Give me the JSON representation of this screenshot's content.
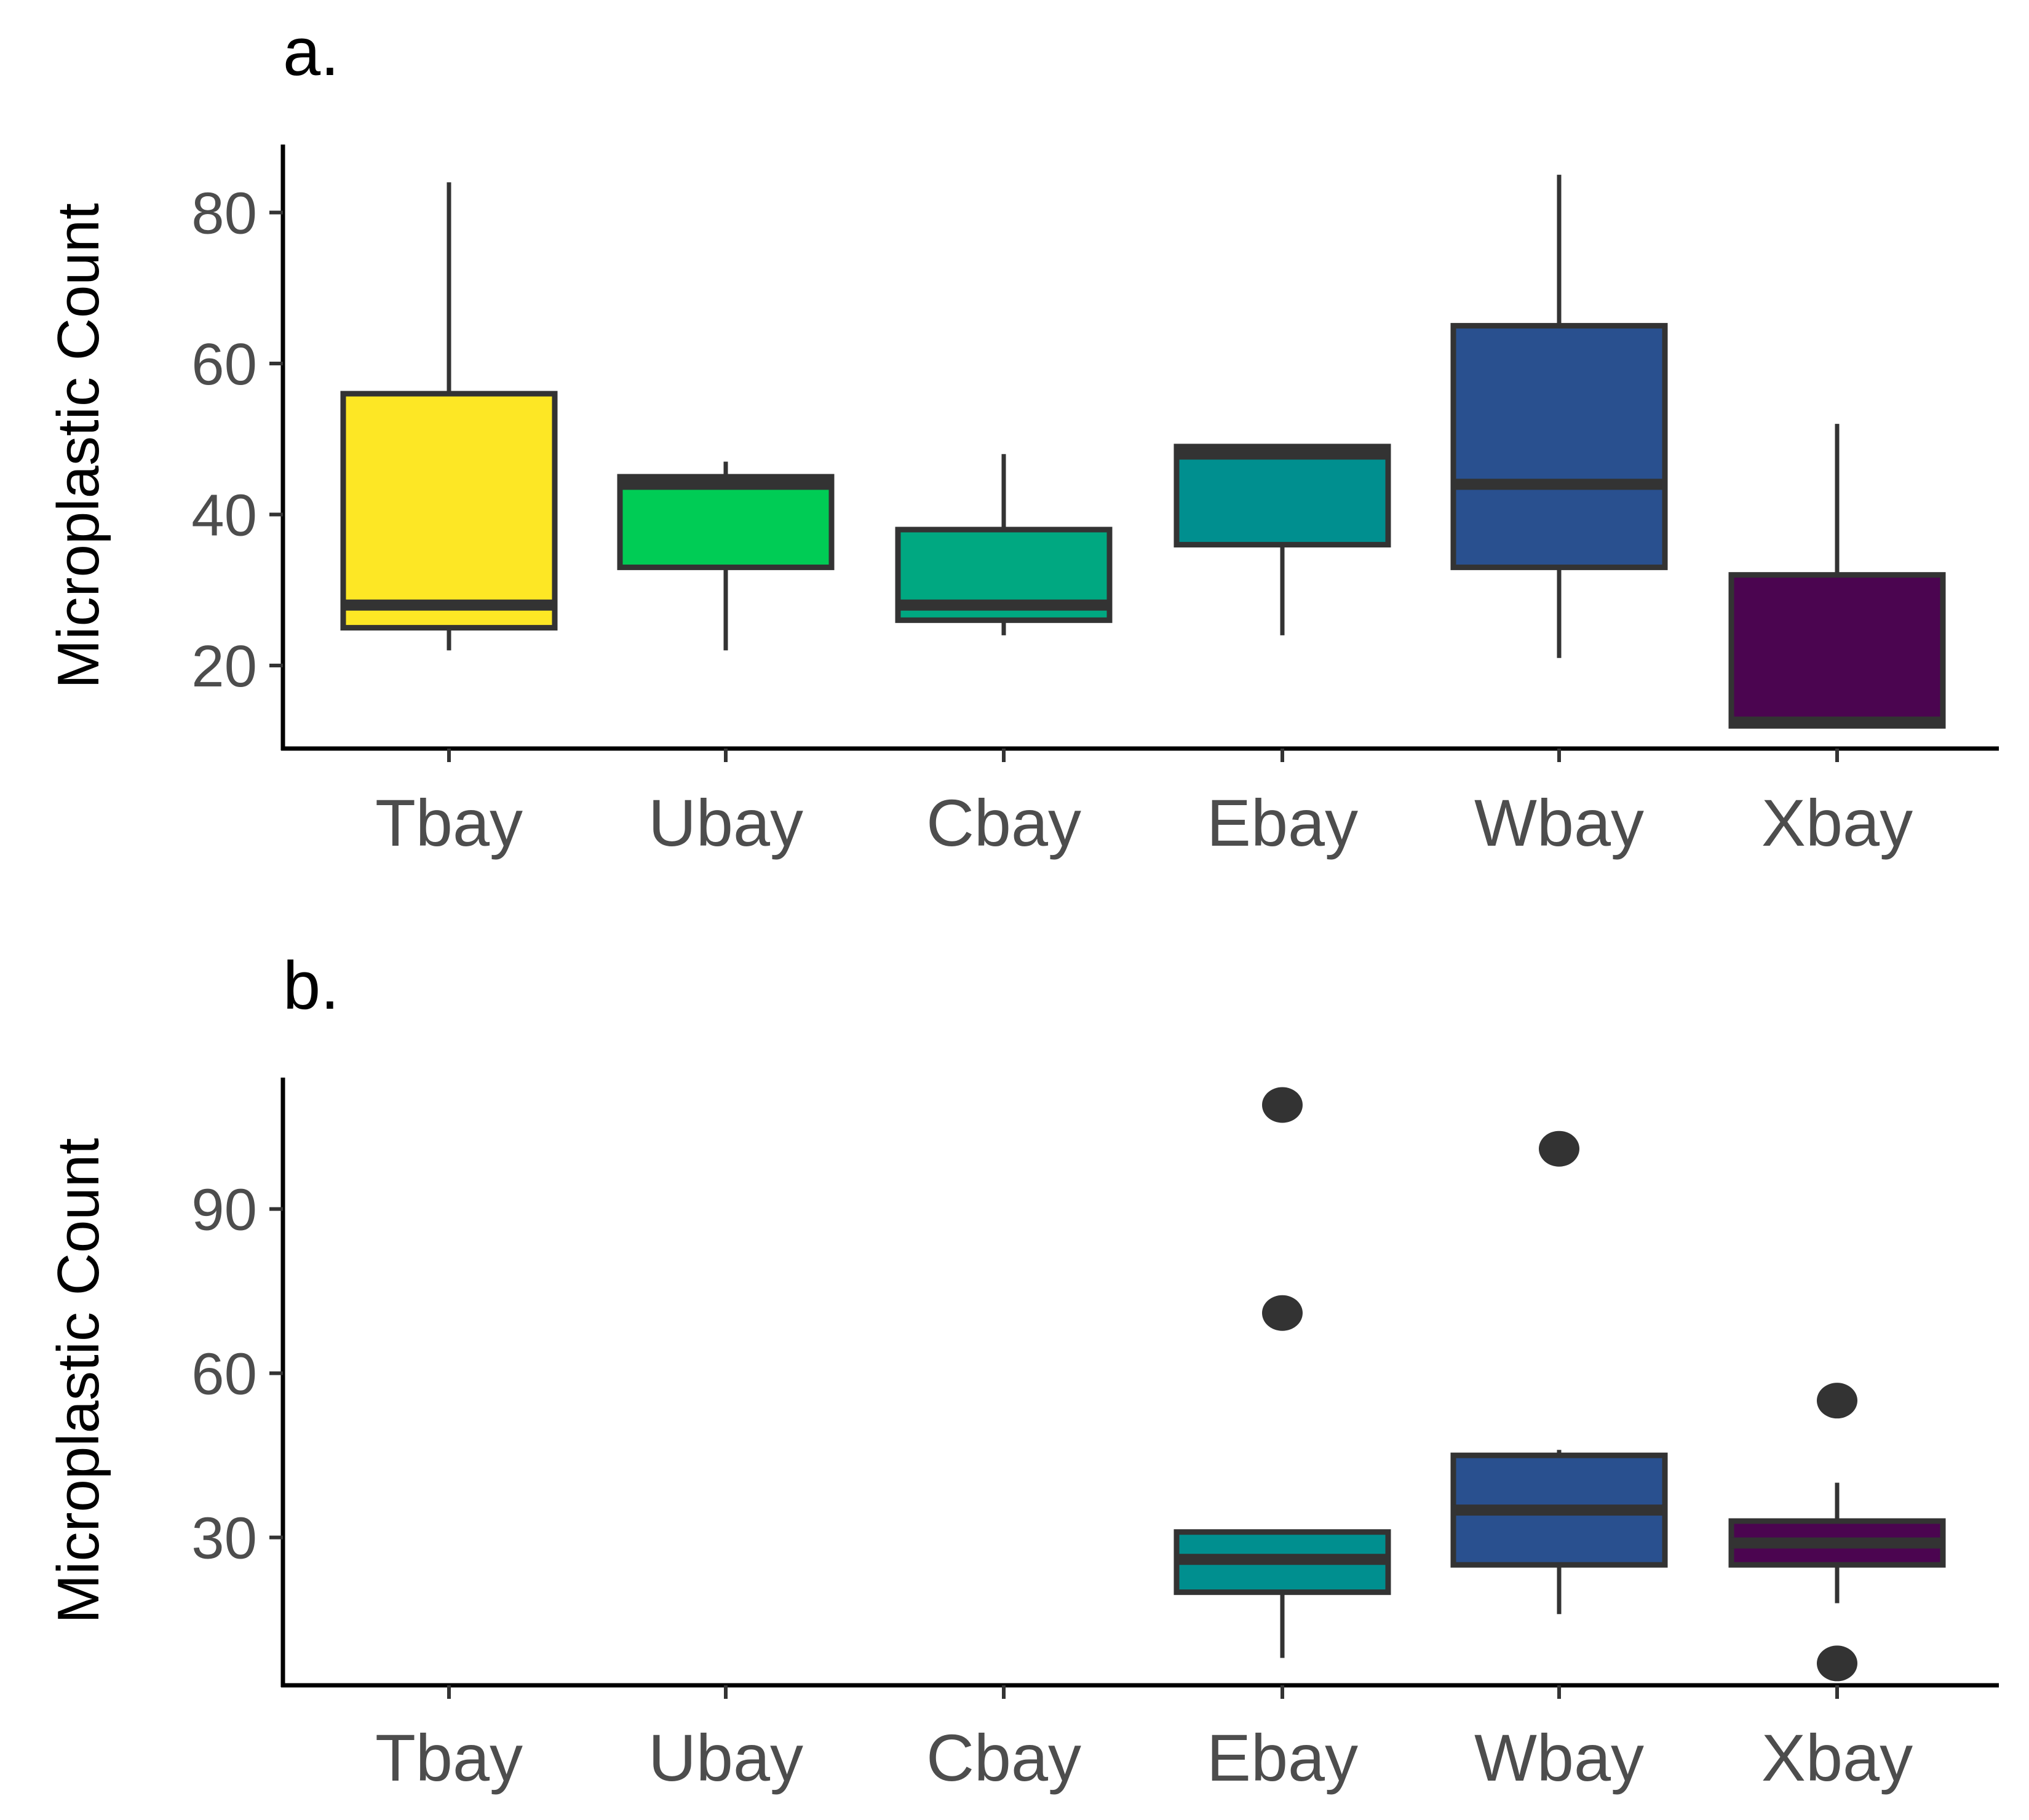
{
  "chart_data": [
    {
      "type": "boxplot",
      "panel_label": "a.",
      "ylabel": "Microplastic Count",
      "xlabel": "",
      "categories": [
        "Tbay",
        "Ubay",
        "Cbay",
        "Ebay",
        "Wbay",
        "Xbay"
      ],
      "yticks": [
        20,
        40,
        60,
        80
      ],
      "ylim": [
        9,
        89
      ],
      "boxes": [
        {
          "category": "Tbay",
          "color": "#FDE725",
          "whisker_low": 22,
          "q1": 25,
          "median": 28,
          "q3": 56,
          "whisker_high": 84,
          "outliers": []
        },
        {
          "category": "Ubay",
          "color": "#00CC55",
          "whisker_low": 22,
          "q1": 33,
          "median": 44,
          "q3": 45,
          "whisker_high": 47,
          "outliers": []
        },
        {
          "category": "Cbay",
          "color": "#00A881",
          "whisker_low": 24,
          "q1": 26,
          "median": 28,
          "q3": 38,
          "whisker_high": 48,
          "outliers": []
        },
        {
          "category": "Ebay",
          "color": "#008F8F",
          "whisker_low": 24,
          "q1": 36,
          "median": 48,
          "q3": 49,
          "whisker_high": 49,
          "outliers": []
        },
        {
          "category": "Wbay",
          "color": "#29508F",
          "whisker_low": 21,
          "q1": 33,
          "median": 44,
          "q3": 65,
          "whisker_high": 85,
          "outliers": []
        },
        {
          "category": "Xbay",
          "color": "#4B0550",
          "whisker_low": 12,
          "q1": 12,
          "median": 12.5,
          "q3": 32,
          "whisker_high": 52,
          "outliers": []
        }
      ]
    },
    {
      "type": "boxplot",
      "panel_label": "b.",
      "ylabel": "Microplastic Count",
      "xlabel": "",
      "categories": [
        "Tbay",
        "Ubay",
        "Cbay",
        "Ebay",
        "Wbay",
        "Xbay"
      ],
      "yticks": [
        30,
        60,
        90
      ],
      "ylim": [
        3,
        114
      ],
      "boxes": [
        {
          "category": "Ebay",
          "color": "#008F8F",
          "whisker_low": 8,
          "q1": 20,
          "median": 26,
          "q3": 31,
          "whisker_high": 31,
          "outliers": [
            71,
            109
          ]
        },
        {
          "category": "Wbay",
          "color": "#29508F",
          "whisker_low": 16,
          "q1": 25,
          "median": 35,
          "q3": 45,
          "whisker_high": 46,
          "outliers": [
            101
          ]
        },
        {
          "category": "Xbay",
          "color": "#4B0550",
          "whisker_low": 18,
          "q1": 25,
          "median": 29,
          "q3": 33,
          "whisker_high": 40,
          "outliers": [
            7,
            55
          ]
        }
      ]
    }
  ]
}
